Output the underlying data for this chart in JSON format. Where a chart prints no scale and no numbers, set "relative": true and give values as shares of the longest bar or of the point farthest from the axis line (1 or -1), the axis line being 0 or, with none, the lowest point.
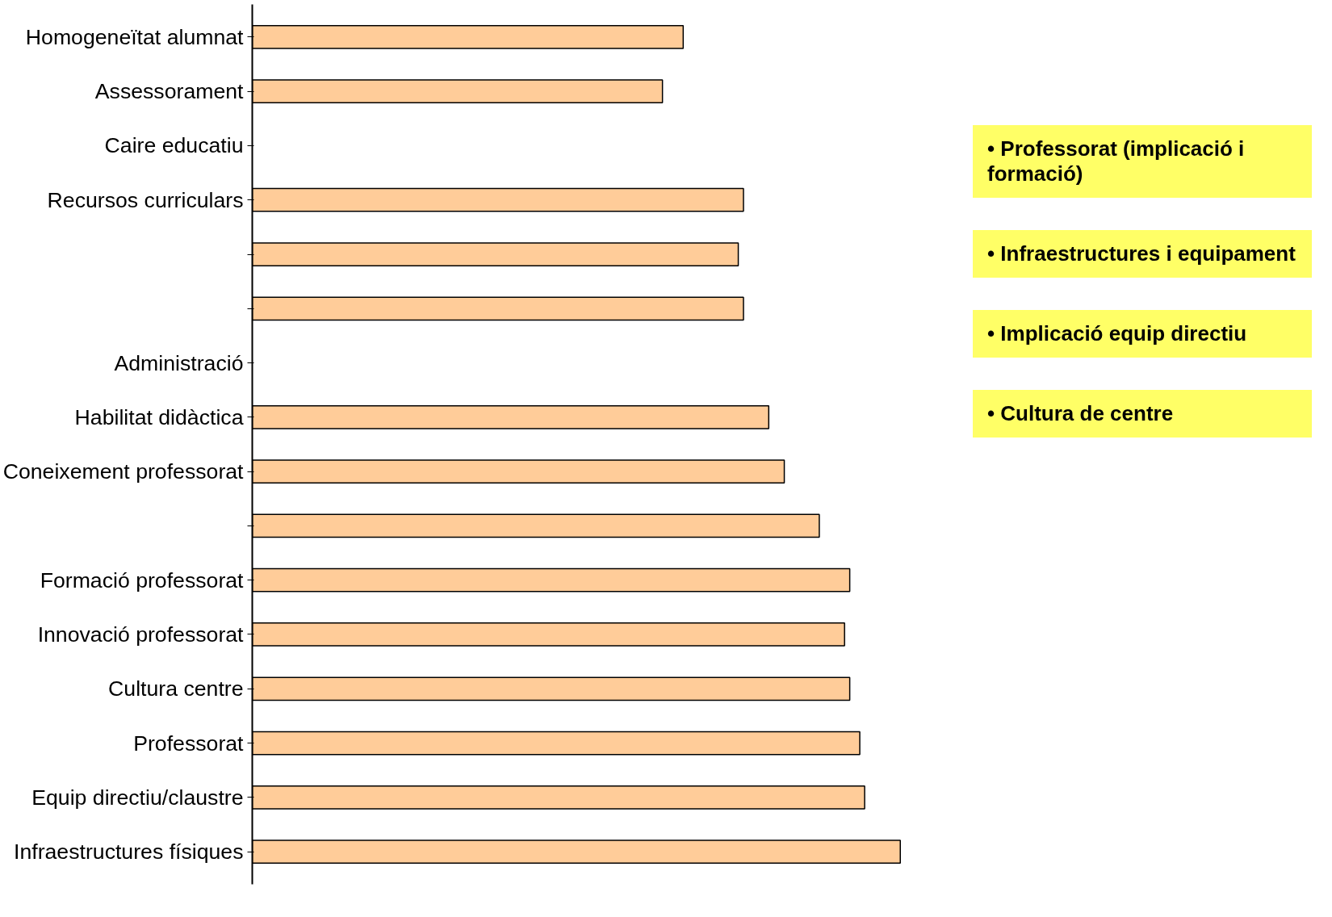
{
  "chart_data": {
    "type": "bar",
    "orientation": "horizontal",
    "relative": true,
    "categories": [
      "Homogeneïtat alumnat",
      "Assessorament",
      "Caire educatiu",
      "Recursos curriculars",
      null,
      null,
      "Administració",
      "Habilitat didàctica",
      "Coneixement professorat",
      null,
      "Formació professorat",
      "Innovació professorat",
      "Cultura centre",
      "Professorat",
      "Equip directiu/claustre",
      "Infraestructures físiques"
    ],
    "values": [
      0.665,
      0.633,
      null,
      0.758,
      0.75,
      0.758,
      null,
      0.797,
      0.821,
      0.875,
      0.922,
      0.914,
      0.922,
      0.9375,
      0.945,
      1
    ],
    "color": "#ffcc99",
    "annotations": [
      "• Professorat (implicació i formació)",
      "• Infraestructures i equipament",
      "• Implicació equip directiu",
      "• Cultura de centre"
    ]
  }
}
